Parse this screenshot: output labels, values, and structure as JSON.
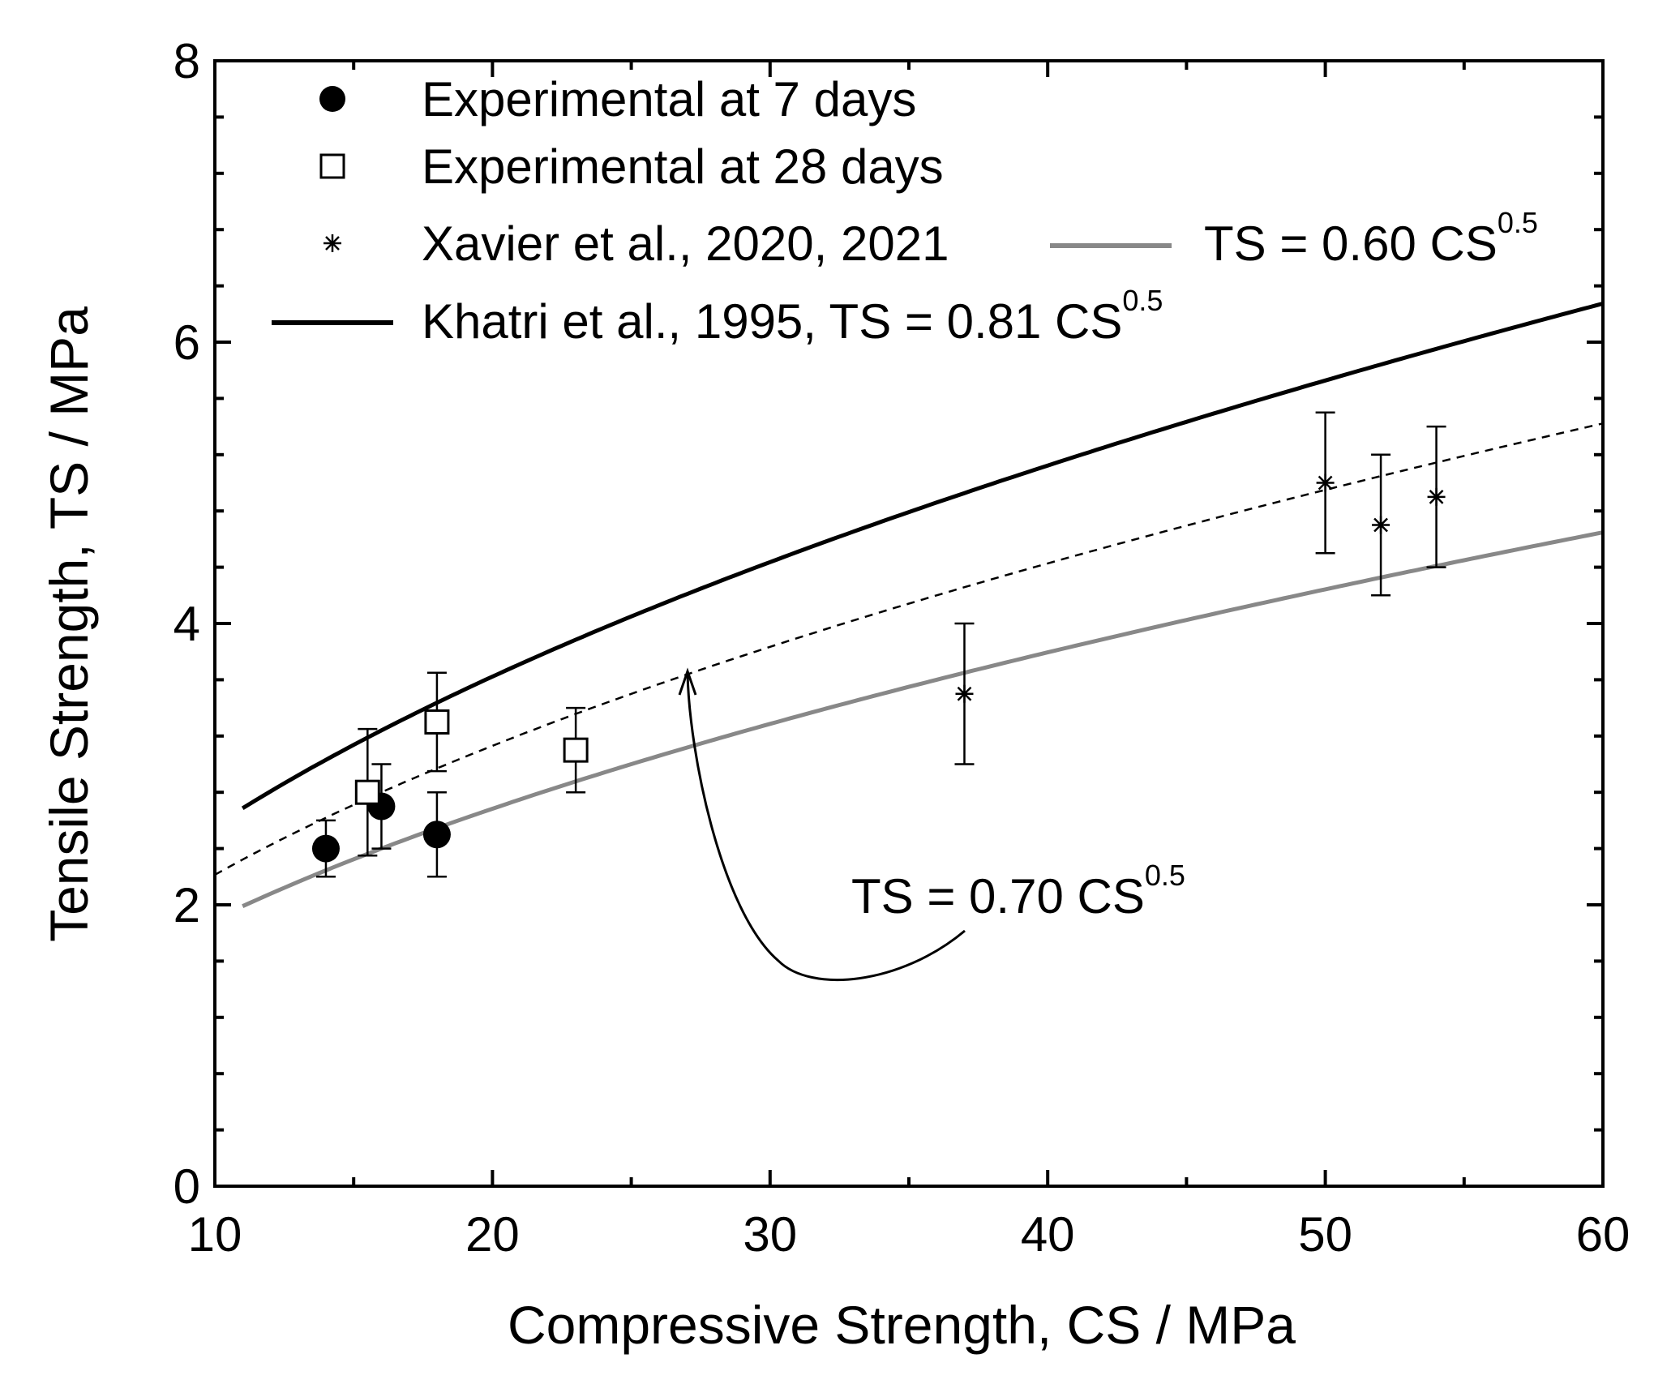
{
  "chart_data": {
    "type": "scatter",
    "xlabel": "Compressive Strength, CS  /  MPa",
    "ylabel": "Tensile Strength, TS  /  MPa",
    "xlim": [
      10,
      60
    ],
    "ylim": [
      0,
      8
    ],
    "x_ticks": [
      10,
      20,
      30,
      40,
      50,
      60
    ],
    "y_ticks": [
      0,
      2,
      4,
      6,
      8
    ],
    "x_tick_labels": [
      "10",
      "20",
      "30",
      "40",
      "50",
      "60"
    ],
    "y_tick_labels": [
      "0",
      "2",
      "4",
      "6",
      "8"
    ],
    "legend": {
      "exp7": "Experimental at 7 days",
      "exp28": "Experimental at 28 days",
      "xavier": "Xavier et al., 2020, 2021",
      "fit060_main": "TS = 0.60 CS",
      "fit060_sup": "0.5",
      "khatri_main": "Khatri et al., 1995, TS = 0.81 CS",
      "khatri_sup": "0.5"
    },
    "annotation": {
      "main": "TS = 0.70 CS",
      "sup": "0.5"
    },
    "series": [
      {
        "name": "Experimental at 7 days",
        "marker": "filled-circle",
        "points": [
          {
            "x": 14,
            "y": 2.4,
            "err": 0.2
          },
          {
            "x": 16,
            "y": 2.7,
            "err": 0.3
          },
          {
            "x": 18,
            "y": 2.5,
            "err": 0.3
          }
        ]
      },
      {
        "name": "Experimental at 28 days",
        "marker": "open-square",
        "points": [
          {
            "x": 15.5,
            "y": 2.8,
            "err": 0.45
          },
          {
            "x": 18,
            "y": 3.3,
            "err": 0.35
          },
          {
            "x": 23,
            "y": 3.1,
            "err": 0.3
          }
        ]
      },
      {
        "name": "Xavier et al., 2020, 2021",
        "marker": "asterisk",
        "points": [
          {
            "x": 37,
            "y": 3.5,
            "err": 0.5
          },
          {
            "x": 50,
            "y": 5.0,
            "err": 0.5
          },
          {
            "x": 52,
            "y": 4.7,
            "err": 0.5
          },
          {
            "x": 54,
            "y": 4.9,
            "err": 0.5
          }
        ]
      }
    ],
    "curves": [
      {
        "name": "Khatri et al., 1995, TS = 0.81 CS^0.5",
        "coef": 0.81,
        "x_range": [
          11,
          60
        ],
        "style": "solid",
        "color": "#000000"
      },
      {
        "name": "TS = 0.70 CS^0.5",
        "coef": 0.7,
        "x_range": [
          10,
          60
        ],
        "style": "dashed",
        "color": "#000000"
      },
      {
        "name": "TS = 0.60 CS^0.5",
        "coef": 0.6,
        "x_range": [
          11,
          60
        ],
        "style": "solid",
        "color": "#888888"
      }
    ]
  }
}
